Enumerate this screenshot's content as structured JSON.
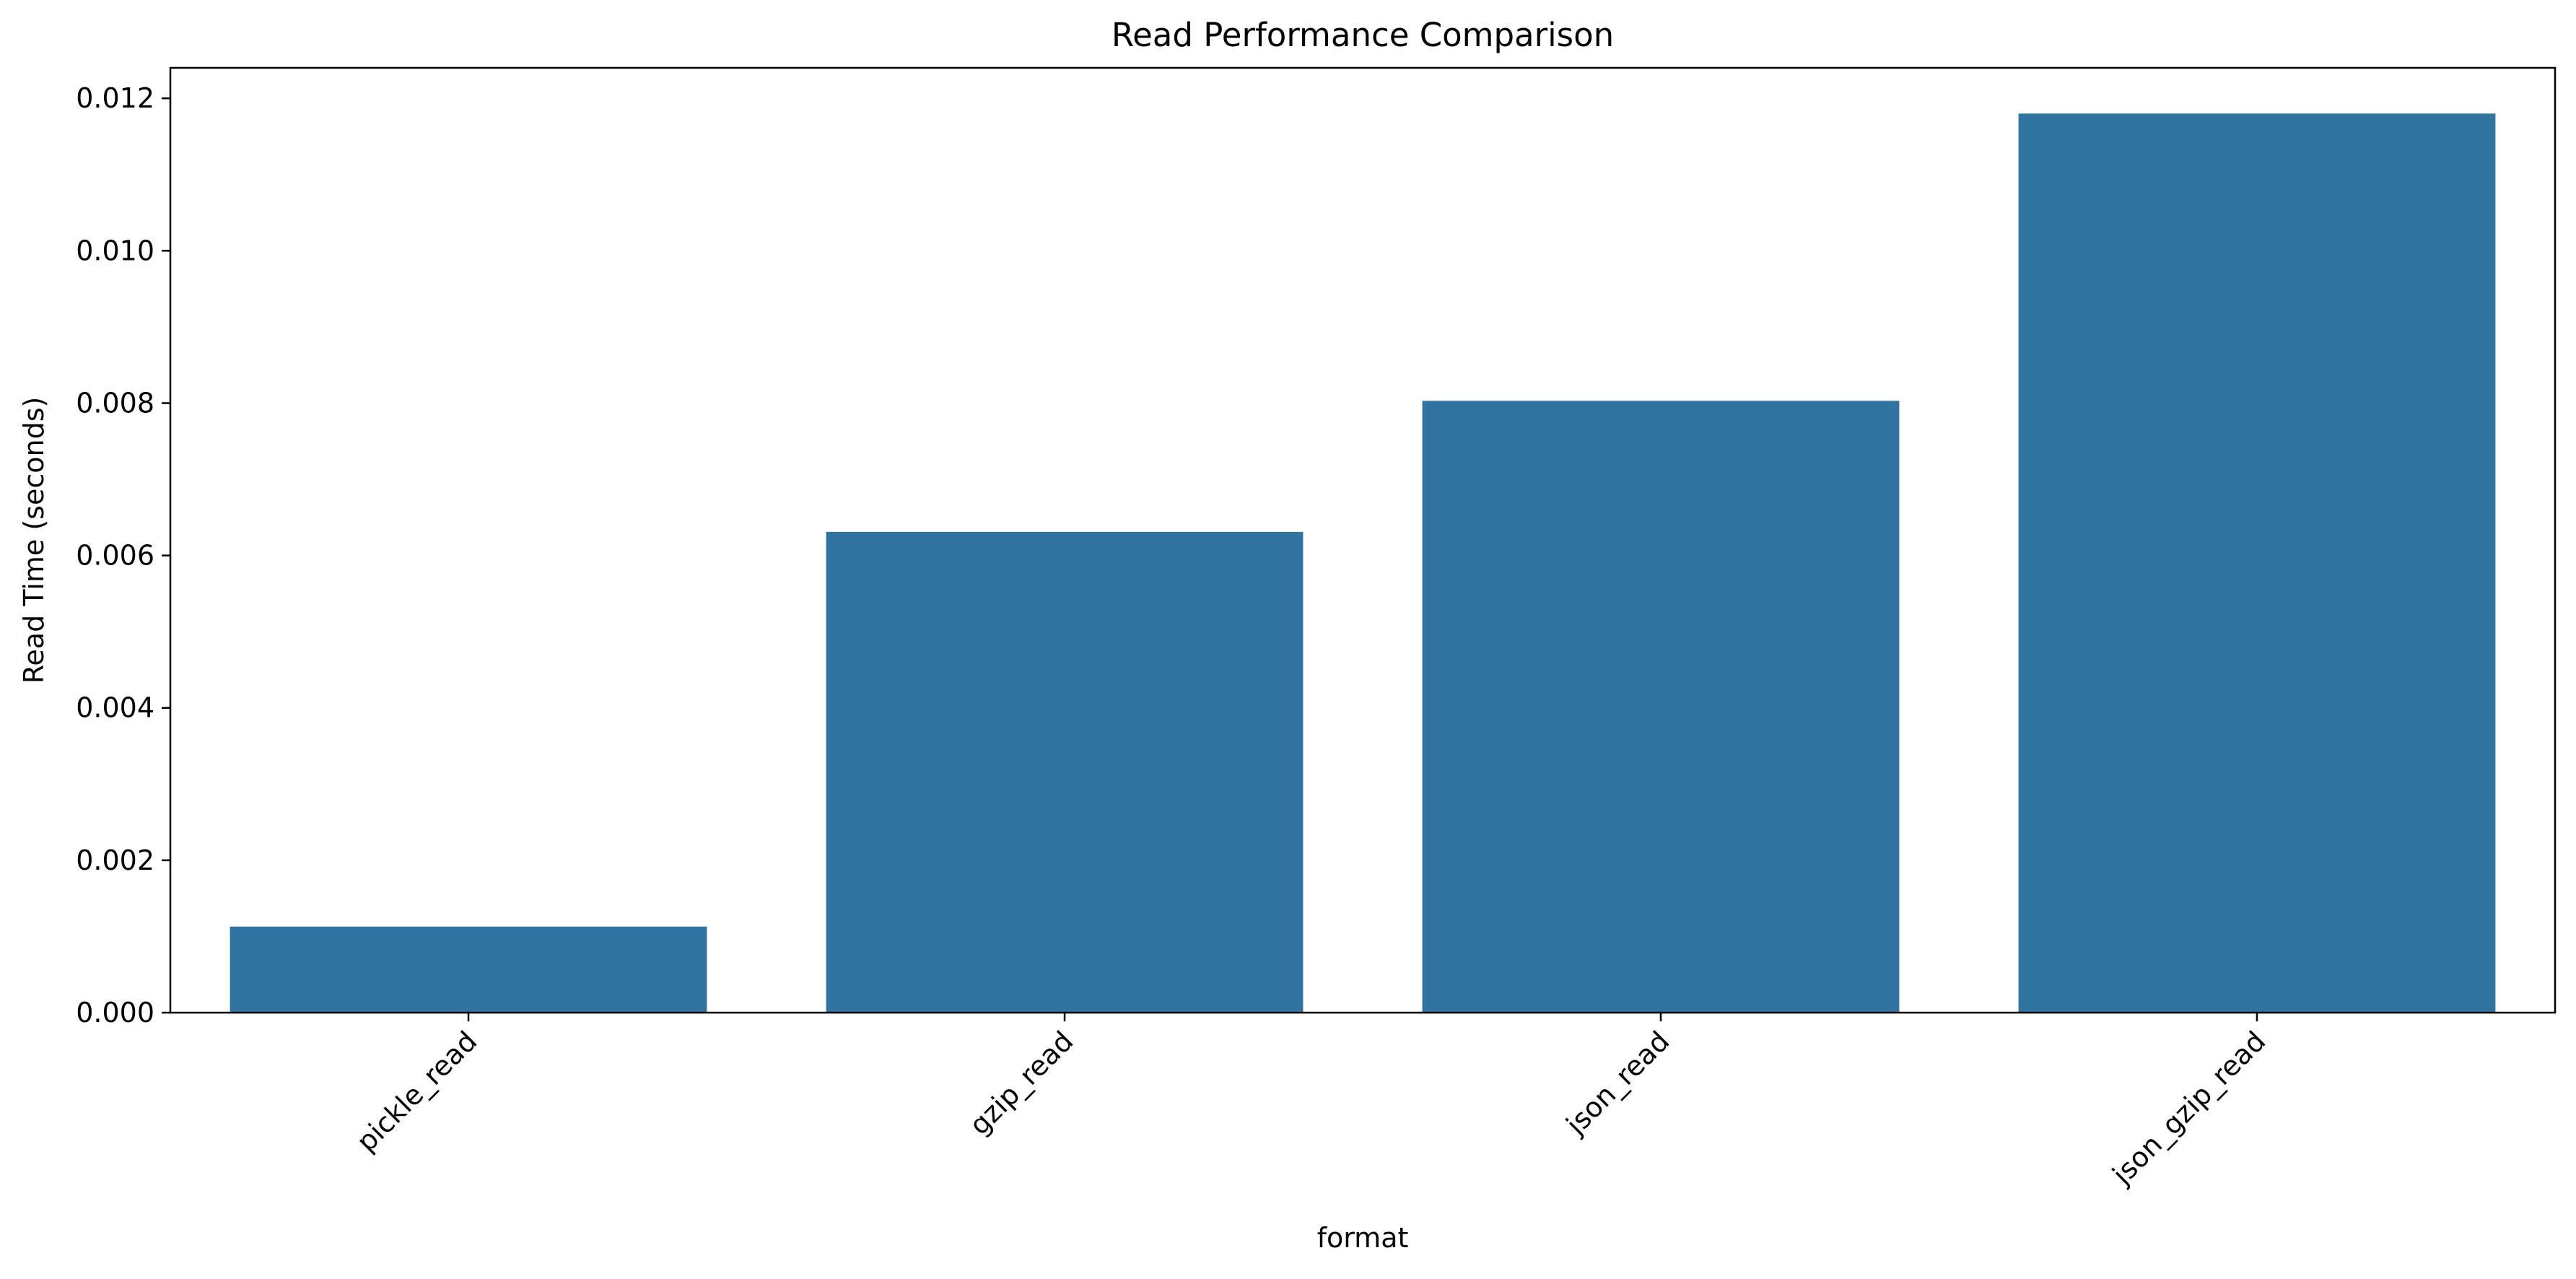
{
  "chart_data": {
    "type": "bar",
    "title": "Read Performance Comparison",
    "xlabel": "format",
    "ylabel": "Read Time (seconds)",
    "categories": [
      "pickle_read",
      "gzip_read",
      "json_read",
      "json_gzip_read"
    ],
    "values": [
      0.00113,
      0.00631,
      0.00803,
      0.0118
    ],
    "ylim": [
      0,
      0.0124
    ],
    "yticks": [
      0.0,
      0.002,
      0.004,
      0.006,
      0.008,
      0.01,
      0.012
    ],
    "ytick_labels": [
      "0.000",
      "0.002",
      "0.004",
      "0.006",
      "0.008",
      "0.010",
      "0.012"
    ],
    "xtick_rotation_deg": 45,
    "bar_color": "#3274a1",
    "grid": false,
    "legend": "none"
  }
}
